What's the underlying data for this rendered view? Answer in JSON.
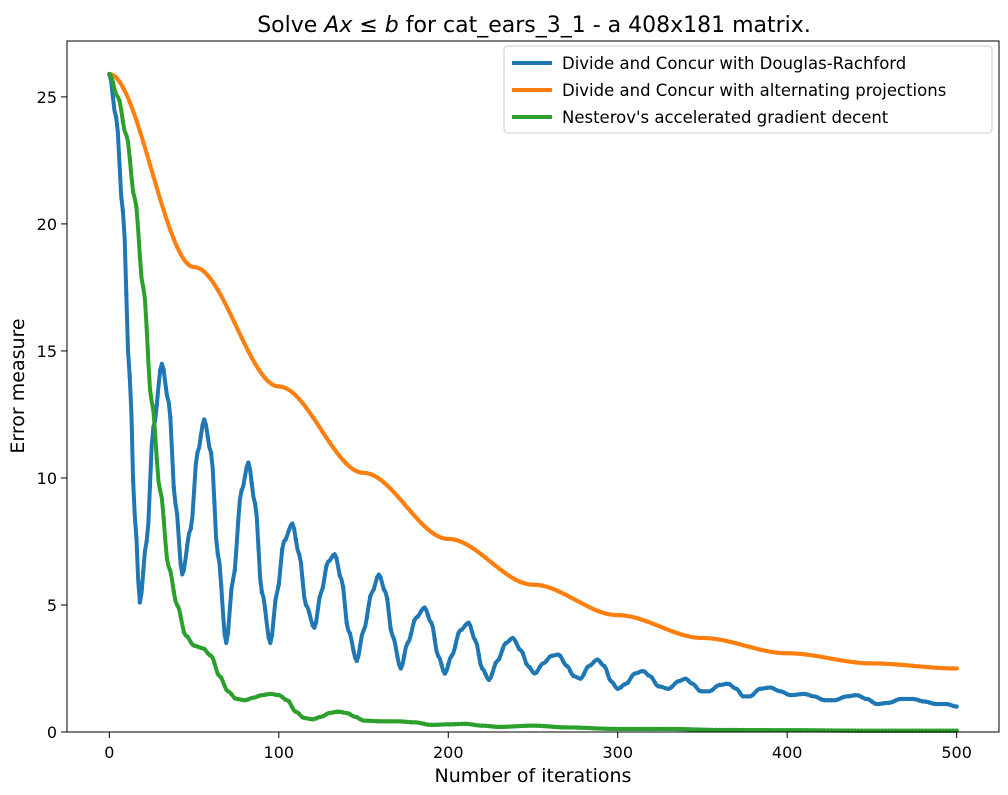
{
  "chart_data": {
    "type": "line",
    "title_parts": [
      "Solve ",
      "Ax",
      " ≤ ",
      "b",
      " for cat_ears_3_1 - a 408x181 matrix."
    ],
    "xlabel": "Number of iterations",
    "ylabel": "Error measure",
    "xlim": [
      -25,
      525
    ],
    "ylim": [
      0,
      27.2
    ],
    "xticks": [
      0,
      100,
      200,
      300,
      400,
      500
    ],
    "yticks": [
      0,
      5,
      10,
      15,
      20,
      25
    ],
    "grid": false,
    "legend_position": "top-right",
    "series": [
      {
        "name": "Divide and Concur with Douglas-Rachford",
        "color": "#1f77b4",
        "model": "oscillating",
        "points": [
          [
            0,
            25.9
          ],
          [
            4,
            24.2
          ],
          [
            8,
            20.5
          ],
          [
            12,
            14.0
          ],
          [
            15,
            8.5
          ],
          [
            18,
            5.1
          ],
          [
            22,
            7.5
          ],
          [
            26,
            12.0
          ],
          [
            31,
            14.5
          ],
          [
            35,
            13.0
          ],
          [
            39,
            9.0
          ],
          [
            43,
            6.2
          ],
          [
            48,
            8.0
          ],
          [
            52,
            11.0
          ],
          [
            56,
            12.3
          ],
          [
            60,
            11.0
          ],
          [
            64,
            7.0
          ],
          [
            69,
            3.5
          ],
          [
            73,
            6.0
          ],
          [
            78,
            9.5
          ],
          [
            82,
            10.6
          ],
          [
            86,
            9.0
          ],
          [
            90,
            5.5
          ],
          [
            95,
            3.5
          ],
          [
            99,
            5.5
          ],
          [
            103,
            7.5
          ],
          [
            108,
            8.2
          ],
          [
            112,
            7.0
          ],
          [
            116,
            5.0
          ],
          [
            121,
            4.1
          ],
          [
            125,
            5.5
          ],
          [
            129,
            6.7
          ],
          [
            133,
            7.0
          ],
          [
            137,
            6.0
          ],
          [
            141,
            4.0
          ],
          [
            146,
            2.8
          ],
          [
            150,
            4.0
          ],
          [
            155,
            5.5
          ],
          [
            159,
            6.2
          ],
          [
            163,
            5.5
          ],
          [
            167,
            3.8
          ],
          [
            172,
            2.5
          ],
          [
            176,
            3.5
          ],
          [
            181,
            4.5
          ],
          [
            186,
            4.9
          ],
          [
            190,
            4.3
          ],
          [
            194,
            3.0
          ],
          [
            198,
            2.3
          ],
          [
            202,
            3.0
          ],
          [
            207,
            4.0
          ],
          [
            212,
            4.3
          ],
          [
            216,
            3.6
          ],
          [
            220,
            2.5
          ],
          [
            224,
            2.05
          ],
          [
            229,
            2.8
          ],
          [
            234,
            3.5
          ],
          [
            238,
            3.7
          ],
          [
            243,
            3.2
          ],
          [
            247,
            2.6
          ],
          [
            251,
            2.3
          ],
          [
            256,
            2.7
          ],
          [
            261,
            3.0
          ],
          [
            265,
            3.05
          ],
          [
            270,
            2.6
          ],
          [
            274,
            2.2
          ],
          [
            278,
            2.1
          ],
          [
            283,
            2.6
          ],
          [
            288,
            2.85
          ],
          [
            292,
            2.6
          ],
          [
            296,
            2.0
          ],
          [
            300,
            1.7
          ],
          [
            305,
            1.9
          ],
          [
            310,
            2.3
          ],
          [
            315,
            2.4
          ],
          [
            319,
            2.2
          ],
          [
            324,
            1.8
          ],
          [
            330,
            1.7
          ],
          [
            336,
            2.0
          ],
          [
            340,
            2.1
          ],
          [
            344,
            1.9
          ],
          [
            349,
            1.6
          ],
          [
            354,
            1.6
          ],
          [
            360,
            1.85
          ],
          [
            365,
            1.9
          ],
          [
            370,
            1.7
          ],
          [
            374,
            1.4
          ],
          [
            378,
            1.4
          ],
          [
            384,
            1.7
          ],
          [
            390,
            1.75
          ],
          [
            396,
            1.6
          ],
          [
            402,
            1.45
          ],
          [
            410,
            1.5
          ],
          [
            416,
            1.4
          ],
          [
            422,
            1.25
          ],
          [
            428,
            1.25
          ],
          [
            435,
            1.4
          ],
          [
            441,
            1.45
          ],
          [
            447,
            1.3
          ],
          [
            453,
            1.1
          ],
          [
            460,
            1.15
          ],
          [
            467,
            1.3
          ],
          [
            474,
            1.3
          ],
          [
            481,
            1.2
          ],
          [
            488,
            1.1
          ],
          [
            494,
            1.1
          ],
          [
            500,
            1.0
          ]
        ]
      },
      {
        "name": "Divide and Concur with alternating projections",
        "color": "#ff7f0e",
        "model": "exponential",
        "points": [
          [
            0,
            25.9
          ],
          [
            50,
            18.3
          ],
          [
            100,
            13.6
          ],
          [
            150,
            10.2
          ],
          [
            200,
            7.6
          ],
          [
            250,
            5.8
          ],
          [
            300,
            4.6
          ],
          [
            350,
            3.7
          ],
          [
            400,
            3.1
          ],
          [
            450,
            2.7
          ],
          [
            500,
            2.5
          ]
        ]
      },
      {
        "name": "Nesterov's accelerated gradient decent",
        "color": "#2ca02c",
        "model": "smooth-decay",
        "points": [
          [
            0,
            25.9
          ],
          [
            5,
            25.0
          ],
          [
            10,
            23.5
          ],
          [
            15,
            21.0
          ],
          [
            20,
            17.5
          ],
          [
            25,
            13.0
          ],
          [
            30,
            9.5
          ],
          [
            35,
            6.5
          ],
          [
            40,
            5.0
          ],
          [
            45,
            3.8
          ],
          [
            50,
            3.4
          ],
          [
            55,
            3.3
          ],
          [
            60,
            3.0
          ],
          [
            65,
            2.2
          ],
          [
            70,
            1.6
          ],
          [
            75,
            1.3
          ],
          [
            80,
            1.25
          ],
          [
            85,
            1.35
          ],
          [
            90,
            1.45
          ],
          [
            95,
            1.5
          ],
          [
            100,
            1.45
          ],
          [
            105,
            1.25
          ],
          [
            110,
            0.8
          ],
          [
            115,
            0.55
          ],
          [
            120,
            0.5
          ],
          [
            125,
            0.6
          ],
          [
            130,
            0.75
          ],
          [
            135,
            0.8
          ],
          [
            140,
            0.75
          ],
          [
            145,
            0.6
          ],
          [
            150,
            0.45
          ],
          [
            160,
            0.42
          ],
          [
            170,
            0.42
          ],
          [
            180,
            0.38
          ],
          [
            190,
            0.28
          ],
          [
            200,
            0.3
          ],
          [
            210,
            0.32
          ],
          [
            220,
            0.25
          ],
          [
            230,
            0.2
          ],
          [
            250,
            0.25
          ],
          [
            270,
            0.18
          ],
          [
            300,
            0.12
          ],
          [
            330,
            0.12
          ],
          [
            360,
            0.08
          ],
          [
            400,
            0.07
          ],
          [
            450,
            0.05
          ],
          [
            500,
            0.05
          ]
        ]
      }
    ]
  }
}
